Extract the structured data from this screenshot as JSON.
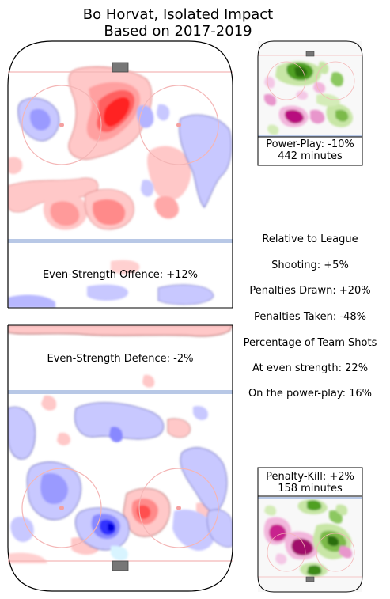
{
  "title_line1": "Bo Horvat, Isolated Impact",
  "title_line2": "Based on 2017-2019",
  "even_strength_offence": "Even-Strength Offence: +12%",
  "even_strength_defence": "Even-Strength Defence: -2%",
  "power_play": {
    "line1": "Power-Play: -10%",
    "line2": "442 minutes"
  },
  "penalty_kill": {
    "line1": "Penalty-Kill: +2%",
    "line2": "158 minutes"
  },
  "relative_header": "Relative to League",
  "stats": {
    "shooting": "Shooting: +5%",
    "penalties_drawn": "Penalties Drawn: +20%",
    "penalties_taken": "Penalties Taken: -48%",
    "team_shots_header": "Percentage of Team Shots",
    "even_strength_share": "At even strength: 22%",
    "power_play_share": "On the power-play: 16%"
  },
  "colors": {
    "increase": "#ff0000",
    "decrease": "#0000ff",
    "special_increase": "#a0009a",
    "special_decrease": "#3fa000",
    "rink_line_red": "#f4b6b6",
    "rink_line_blue": "#b8c8e6"
  },
  "chart_data": [
    {
      "type": "heatmap",
      "title": "Even-Strength Offence: +12%"
    },
    {
      "type": "heatmap",
      "title": "Even-Strength Defence: -2%"
    },
    {
      "type": "heatmap",
      "title": "Power-Play: -10%",
      "subtitle": "442 minutes"
    },
    {
      "type": "heatmap",
      "title": "Penalty-Kill: +2%",
      "subtitle": "158 minutes"
    }
  ]
}
